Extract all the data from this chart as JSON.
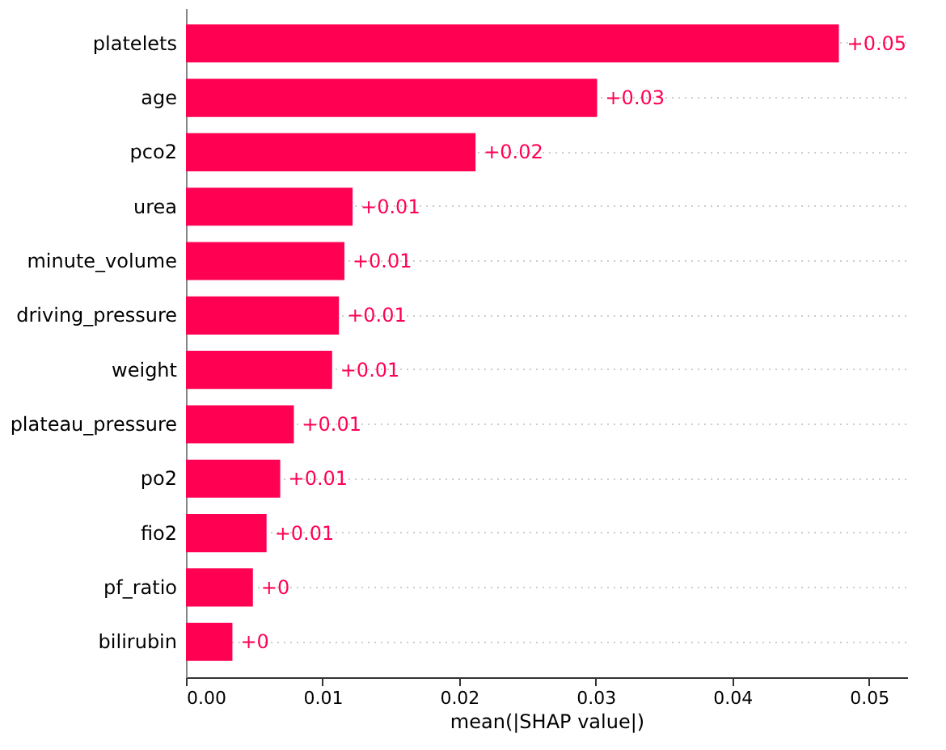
{
  "chart_data": {
    "type": "bar",
    "orientation": "horizontal",
    "xlabel": "mean(|SHAP value|)",
    "categories": [
      "platelets",
      "age",
      "pco2",
      "urea",
      "minute_volume",
      "driving_pressure",
      "weight",
      "plateau_pressure",
      "po2",
      "fio2",
      "pf_ratio",
      "bilirubin"
    ],
    "values": [
      0.0478,
      0.0301,
      0.0212,
      0.0122,
      0.0116,
      0.0112,
      0.0107,
      0.0079,
      0.0069,
      0.0059,
      0.0049,
      0.0034
    ],
    "value_labels": [
      "+0.05",
      "+0.03",
      "+0.02",
      "+0.01",
      "+0.01",
      "+0.01",
      "+0.01",
      "+0.01",
      "+0.01",
      "+0.01",
      "+0",
      "+0"
    ],
    "color": "#ff0052",
    "xlim": [
      0,
      0.0528
    ],
    "xticks": [
      {
        "value": 0,
        "label": "0.00"
      },
      {
        "value": 0.01,
        "label": "0.01"
      },
      {
        "value": 0.02,
        "label": "0.02"
      },
      {
        "value": 0.03,
        "label": "0.03"
      },
      {
        "value": 0.04,
        "label": "0.04"
      },
      {
        "value": 0.05,
        "label": "0.05"
      }
    ],
    "grid": "y"
  }
}
